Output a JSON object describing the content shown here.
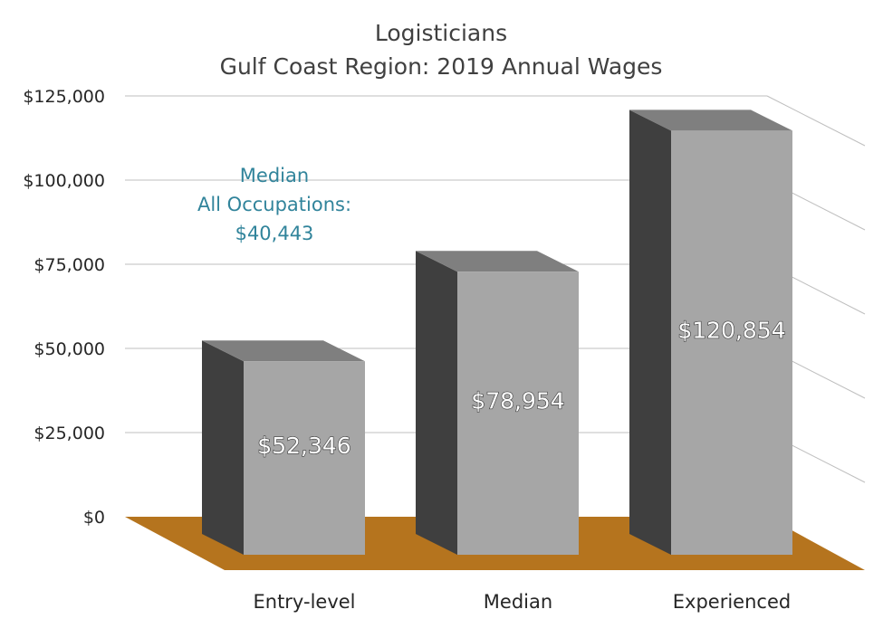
{
  "chart_data": {
    "type": "bar",
    "title": "Logisticians",
    "subtitle": "Gulf Coast Region: 2019 Annual Wages",
    "categories": [
      "Entry-level",
      "Median",
      "Experienced"
    ],
    "values": [
      52346,
      78954,
      120854
    ],
    "value_labels": [
      "$52,346",
      "$78,954",
      "$120,854"
    ],
    "ylim": [
      0,
      125000
    ],
    "y_ticks": [
      "$0",
      "$25,000",
      "$50,000",
      "$75,000",
      "$100,000",
      "$125,000"
    ],
    "grid": true,
    "three_d": true,
    "annotation": {
      "line1": "Median",
      "line2": "All Occupations:",
      "line3": "$40,443",
      "color": "#31849B"
    },
    "colors": {
      "bar_front": "#A6A6A6",
      "bar_side": "#3F3F3F",
      "bar_top": "#7F7F7F",
      "floor": "#B5741E"
    }
  }
}
